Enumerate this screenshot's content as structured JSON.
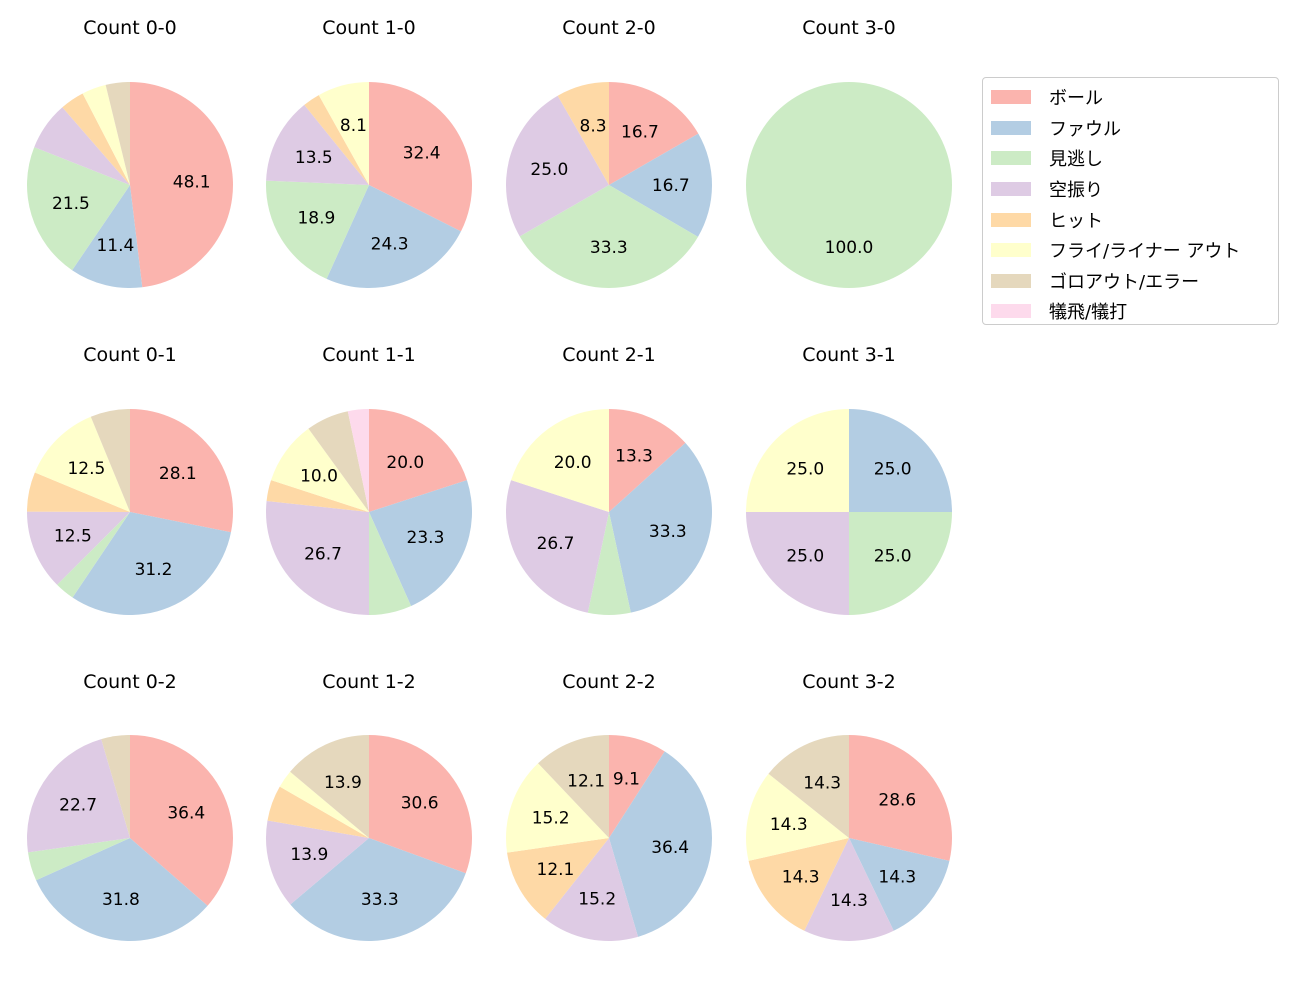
{
  "chart_data": {
    "type": "pie",
    "legend_position": "right",
    "categories": [
      "ボール",
      "ファウル",
      "見逃し",
      "空振り",
      "ヒット",
      "フライ/ライナー アウト",
      "ゴロアウト/エラー",
      "犠飛/犠打"
    ],
    "colors": [
      "#fbb4ae",
      "#b3cde3",
      "#ccebc5",
      "#decbe4",
      "#fed9a6",
      "#ffffcc",
      "#e5d8bd",
      "#fddaec"
    ],
    "pies": [
      {
        "title": "Count 0-0",
        "values": [
          48.1,
          11.4,
          21.5,
          7.6,
          3.8,
          3.8,
          3.8,
          0
        ]
      },
      {
        "title": "Count 1-0",
        "values": [
          32.4,
          24.3,
          18.9,
          13.5,
          2.7,
          8.1,
          0,
          0
        ]
      },
      {
        "title": "Count 2-0",
        "values": [
          16.7,
          16.7,
          33.3,
          25.0,
          8.3,
          0,
          0,
          0
        ]
      },
      {
        "title": "Count 3-0",
        "values": [
          0,
          0,
          100.0,
          0,
          0,
          0,
          0,
          0
        ]
      },
      {
        "title": "Count 0-1",
        "values": [
          28.1,
          31.2,
          3.1,
          12.5,
          6.2,
          12.5,
          6.2,
          0
        ]
      },
      {
        "title": "Count 1-1",
        "values": [
          20.0,
          23.3,
          6.7,
          26.7,
          3.3,
          10.0,
          6.7,
          3.3
        ]
      },
      {
        "title": "Count 2-1",
        "values": [
          13.3,
          33.3,
          6.7,
          26.7,
          0,
          20.0,
          0,
          0
        ]
      },
      {
        "title": "Count 3-1",
        "values": [
          0,
          25.0,
          25.0,
          25.0,
          0,
          25.0,
          0,
          0
        ]
      },
      {
        "title": "Count 0-2",
        "values": [
          36.4,
          31.8,
          4.5,
          22.7,
          0,
          0,
          4.5,
          0
        ]
      },
      {
        "title": "Count 1-2",
        "values": [
          30.6,
          33.3,
          0,
          13.9,
          5.6,
          2.8,
          13.9,
          0
        ]
      },
      {
        "title": "Count 2-2",
        "values": [
          9.1,
          36.4,
          0,
          15.2,
          12.1,
          15.2,
          12.1,
          0
        ]
      },
      {
        "title": "Count 3-2",
        "values": [
          28.6,
          14.3,
          0,
          14.3,
          14.3,
          14.3,
          14.3,
          0
        ]
      }
    ]
  }
}
